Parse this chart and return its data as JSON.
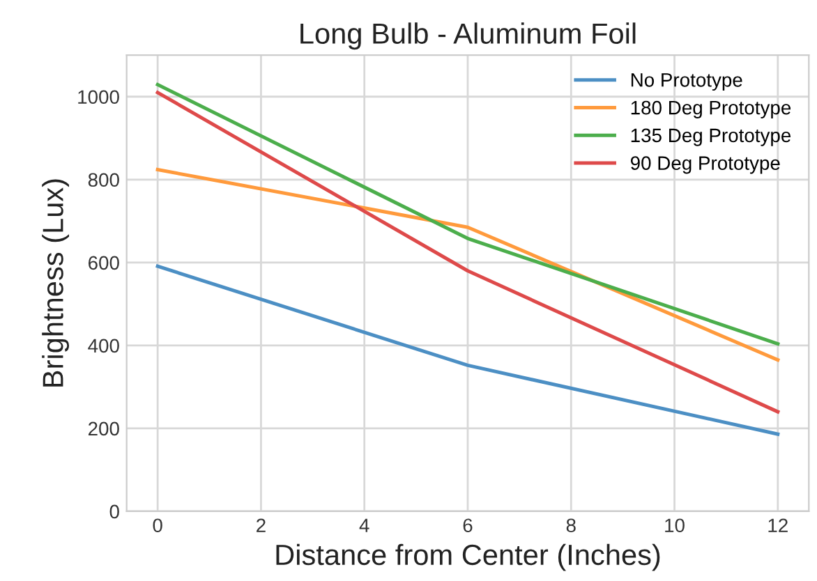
{
  "chart_data": {
    "type": "line",
    "title": "Long Bulb - Aluminum Foil",
    "xlabel": "Distance from Center (Inches)",
    "ylabel": "Brightness (Lux)",
    "x": [
      0,
      6,
      12
    ],
    "series": [
      {
        "name": "No Prototype",
        "color": "#4c8fc4",
        "values": [
          591,
          352,
          186
        ]
      },
      {
        "name": "180 Deg Prototype",
        "color": "#ff9a3c",
        "values": [
          824,
          685,
          365
        ]
      },
      {
        "name": "135 Deg Prototype",
        "color": "#4cae4c",
        "values": [
          1029,
          658,
          404
        ]
      },
      {
        "name": "90 Deg Prototype",
        "color": "#de4a4a",
        "values": [
          1010,
          580,
          240
        ]
      }
    ],
    "xlim": [
      -0.6,
      12.6
    ],
    "xticks": [
      0,
      2,
      4,
      6,
      8,
      10,
      12
    ],
    "ylim": [
      0,
      1100
    ],
    "yticks": [
      0,
      200,
      400,
      600,
      800,
      1000
    ],
    "grid": true,
    "legend": "top right",
    "marker": "none",
    "line_style": "solid"
  }
}
